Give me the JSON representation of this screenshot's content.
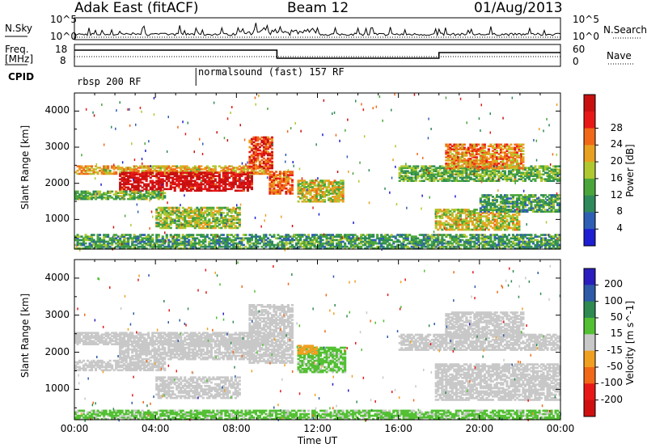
{
  "header": {
    "station": "Adak East (fitACF)",
    "beam": "Beam 12",
    "date": "01/Aug/2013"
  },
  "top_labels": {
    "nsky": "N.Sky",
    "freq_line1": "Freq.",
    "freq_line2": "[MHz]",
    "cpid": "CPID",
    "nsearch": "N.Search",
    "nave": "Nave",
    "nsky_ticks": [
      "10^5",
      "10^0"
    ],
    "nsearch_ticks": [
      "10^5",
      "10^0"
    ],
    "freq_ticks": [
      "18",
      "8"
    ],
    "nave_ticks": [
      "60",
      "0"
    ]
  },
  "cpid_segments": [
    {
      "label": "rbsp 200 RF",
      "start_hour": 0
    },
    {
      "label": "normalsound (fast) 157 RF",
      "start_hour": 6
    }
  ],
  "colors": {
    "power": [
      "#1e1ed2",
      "#2e5fb4",
      "#2e8a5a",
      "#4aa63a",
      "#b0c830",
      "#e8a020",
      "#f06818",
      "#e81818",
      "#c81010"
    ],
    "velocity": [
      "#2a1ebe",
      "#2e5aa8",
      "#2e8a50",
      "#52c032",
      "#c8c8c8",
      "#f0a020",
      "#f06818",
      "#e81818",
      "#d01010"
    ]
  },
  "chart_data": [
    {
      "type": "heatmap",
      "title": "Power",
      "xlabel": "Time UT",
      "ylabel": "Slant Range [km]",
      "xlim": [
        0,
        24
      ],
      "ylim": [
        180,
        4500
      ],
      "x_ticks": [
        "00:00",
        "04:00",
        "08:00",
        "12:00",
        "16:00",
        "20:00",
        "00:00"
      ],
      "y_ticks": [
        1000,
        2000,
        3000,
        4000
      ],
      "colorbar": {
        "label": "Power [dB]",
        "ticks": [
          "4",
          "8",
          "12",
          "16",
          "20",
          "24",
          "28"
        ],
        "range": [
          0,
          30
        ]
      },
      "bands": [
        {
          "t0": 0.0,
          "t1": 9.6,
          "r0": 2250,
          "r1": 2500,
          "value": 18
        },
        {
          "t0": 2.2,
          "t1": 8.8,
          "r0": 1780,
          "r1": 2320,
          "value": 28
        },
        {
          "t0": 8.6,
          "t1": 9.8,
          "r0": 2400,
          "r1": 3300,
          "value": 24
        },
        {
          "t0": 9.6,
          "t1": 10.8,
          "r0": 1700,
          "r1": 2350,
          "value": 22
        },
        {
          "t0": 11.0,
          "t1": 13.3,
          "r0": 1480,
          "r1": 2100,
          "value": 16
        },
        {
          "t0": 0.0,
          "t1": 4.5,
          "r0": 1550,
          "r1": 1800,
          "value": 12
        },
        {
          "t0": 4.0,
          "t1": 8.2,
          "r0": 750,
          "r1": 1350,
          "value": 14
        },
        {
          "t0": 16.0,
          "t1": 24.0,
          "r0": 2050,
          "r1": 2500,
          "value": 12
        },
        {
          "t0": 18.3,
          "t1": 22.2,
          "r0": 2400,
          "r1": 3100,
          "value": 20
        },
        {
          "t0": 17.8,
          "t1": 22.0,
          "r0": 700,
          "r1": 1300,
          "value": 16
        },
        {
          "t0": 20.0,
          "t1": 24.0,
          "r0": 1200,
          "r1": 1700,
          "value": 10
        },
        {
          "t0": 0.0,
          "t1": 24.0,
          "r0": 180,
          "r1": 600,
          "value": 10
        }
      ]
    },
    {
      "type": "heatmap",
      "title": "Velocity",
      "xlabel": "Time UT",
      "ylabel": "Slant Range [km]",
      "xlim": [
        0,
        24
      ],
      "ylim": [
        180,
        4500
      ],
      "x_ticks": [
        "00:00",
        "04:00",
        "08:00",
        "12:00",
        "16:00",
        "20:00",
        "00:00"
      ],
      "y_ticks": [
        1000,
        2000,
        3000,
        4000
      ],
      "colorbar": {
        "label": "Velocity [m s^-1]",
        "ticks": [
          "200",
          "100",
          "50",
          "15",
          "-15",
          "-50",
          "-100",
          "-200"
        ],
        "range": [
          -250,
          250
        ]
      },
      "bands": [
        {
          "t0": 0.0,
          "t1": 9.6,
          "r0": 2200,
          "r1": 2550,
          "value": 0
        },
        {
          "t0": 2.2,
          "t1": 8.8,
          "r0": 1800,
          "r1": 2320,
          "value": 0
        },
        {
          "t0": 8.6,
          "t1": 10.8,
          "r0": 1700,
          "r1": 3300,
          "value": 0
        },
        {
          "t0": 11.0,
          "t1": 13.4,
          "r0": 1450,
          "r1": 2150,
          "value": 40
        },
        {
          "t0": 11.0,
          "t1": 12.0,
          "r0": 1950,
          "r1": 2200,
          "value": -60
        },
        {
          "t0": 0.0,
          "t1": 4.5,
          "r0": 1500,
          "r1": 1800,
          "value": 0
        },
        {
          "t0": 4.0,
          "t1": 8.2,
          "r0": 750,
          "r1": 1350,
          "value": 0
        },
        {
          "t0": 16.0,
          "t1": 24.0,
          "r0": 2050,
          "r1": 2500,
          "value": 0
        },
        {
          "t0": 18.3,
          "t1": 22.2,
          "r0": 2400,
          "r1": 3100,
          "value": 0
        },
        {
          "t0": 17.8,
          "t1": 24.0,
          "r0": 700,
          "r1": 1700,
          "value": 0
        },
        {
          "t0": 0.0,
          "t1": 24.0,
          "r0": 180,
          "r1": 450,
          "value": 40
        }
      ]
    }
  ]
}
